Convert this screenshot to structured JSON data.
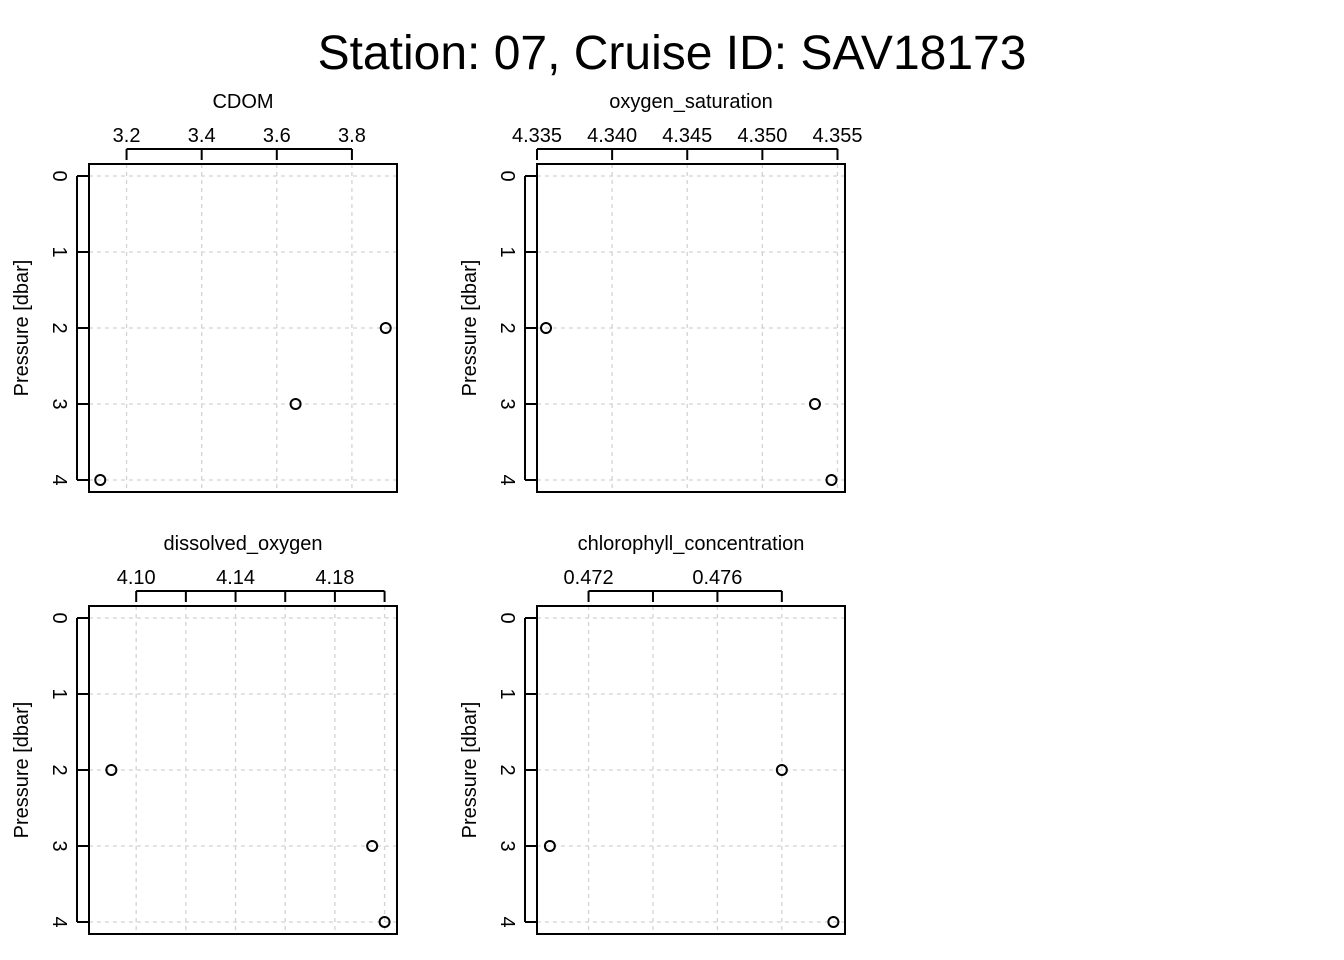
{
  "figure": {
    "title": "Station: 07, Cruise ID: SAV18173"
  },
  "chart_data": [
    {
      "type": "scatter",
      "title": "CDOM",
      "xlabel": "",
      "ylabel": "Pressure [dbar]",
      "x_axis_position": "top",
      "y_reversed": true,
      "xlim": [
        3.1,
        3.92
      ],
      "ylim": [
        0,
        4.15
      ],
      "xticks": [
        3.2,
        3.4,
        3.6,
        3.8
      ],
      "xticklabels": [
        "3.2",
        "3.4",
        "3.6",
        "3.8"
      ],
      "yticks": [
        0,
        1,
        2,
        3,
        4
      ],
      "yticklabels": [
        "0",
        "1",
        "2",
        "3",
        "4"
      ],
      "grid": true,
      "x": [
        3.13,
        3.65,
        3.89
      ],
      "y": [
        4,
        3,
        2
      ]
    },
    {
      "type": "scatter",
      "title": "oxygen_saturation",
      "xlabel": "",
      "ylabel": "Pressure [dbar]",
      "x_axis_position": "top",
      "y_reversed": true,
      "xlim": [
        4.335,
        4.3555
      ],
      "ylim": [
        0,
        4.15
      ],
      "xticks": [
        4.335,
        4.34,
        4.345,
        4.35,
        4.355
      ],
      "xticklabels": [
        "4.335",
        "4.340",
        "4.345",
        "4.350",
        "4.355"
      ],
      "yticks": [
        0,
        1,
        2,
        3,
        4
      ],
      "yticklabels": [
        "0",
        "1",
        "2",
        "3",
        "4"
      ],
      "grid": true,
      "x": [
        4.3356,
        4.3535,
        4.3546
      ],
      "y": [
        2,
        3,
        4
      ]
    },
    {
      "type": "scatter",
      "title": "dissolved_oxygen",
      "xlabel": "",
      "ylabel": "Pressure [dbar]",
      "x_axis_position": "top",
      "y_reversed": true,
      "xlim": [
        4.081,
        4.205
      ],
      "ylim": [
        0,
        4.15
      ],
      "xticks": [
        4.1,
        4.12,
        4.14,
        4.16,
        4.18,
        4.2
      ],
      "xticklabels": [
        "4.10",
        "",
        "4.14",
        "",
        "4.18",
        ""
      ],
      "yticks": [
        0,
        1,
        2,
        3,
        4
      ],
      "yticklabels": [
        "0",
        "1",
        "2",
        "3",
        "4"
      ],
      "grid": true,
      "x": [
        4.09,
        4.195,
        4.2
      ],
      "y": [
        2,
        3,
        4
      ]
    },
    {
      "type": "scatter",
      "title": "chlorophyll_concentration",
      "xlabel": "",
      "ylabel": "Pressure [dbar]",
      "x_axis_position": "top",
      "y_reversed": true,
      "xlim": [
        0.4704,
        0.47996
      ],
      "ylim": [
        0,
        4.15
      ],
      "xticks": [
        0.472,
        0.474,
        0.476,
        0.478
      ],
      "xticklabels": [
        "0.472",
        "",
        "0.476",
        ""
      ],
      "yticks": [
        0,
        1,
        2,
        3,
        4
      ],
      "yticklabels": [
        "0",
        "1",
        "2",
        "3",
        "4"
      ],
      "grid": true,
      "x": [
        0.4708,
        0.478,
        0.4796
      ],
      "y": [
        3,
        2,
        4
      ]
    }
  ]
}
